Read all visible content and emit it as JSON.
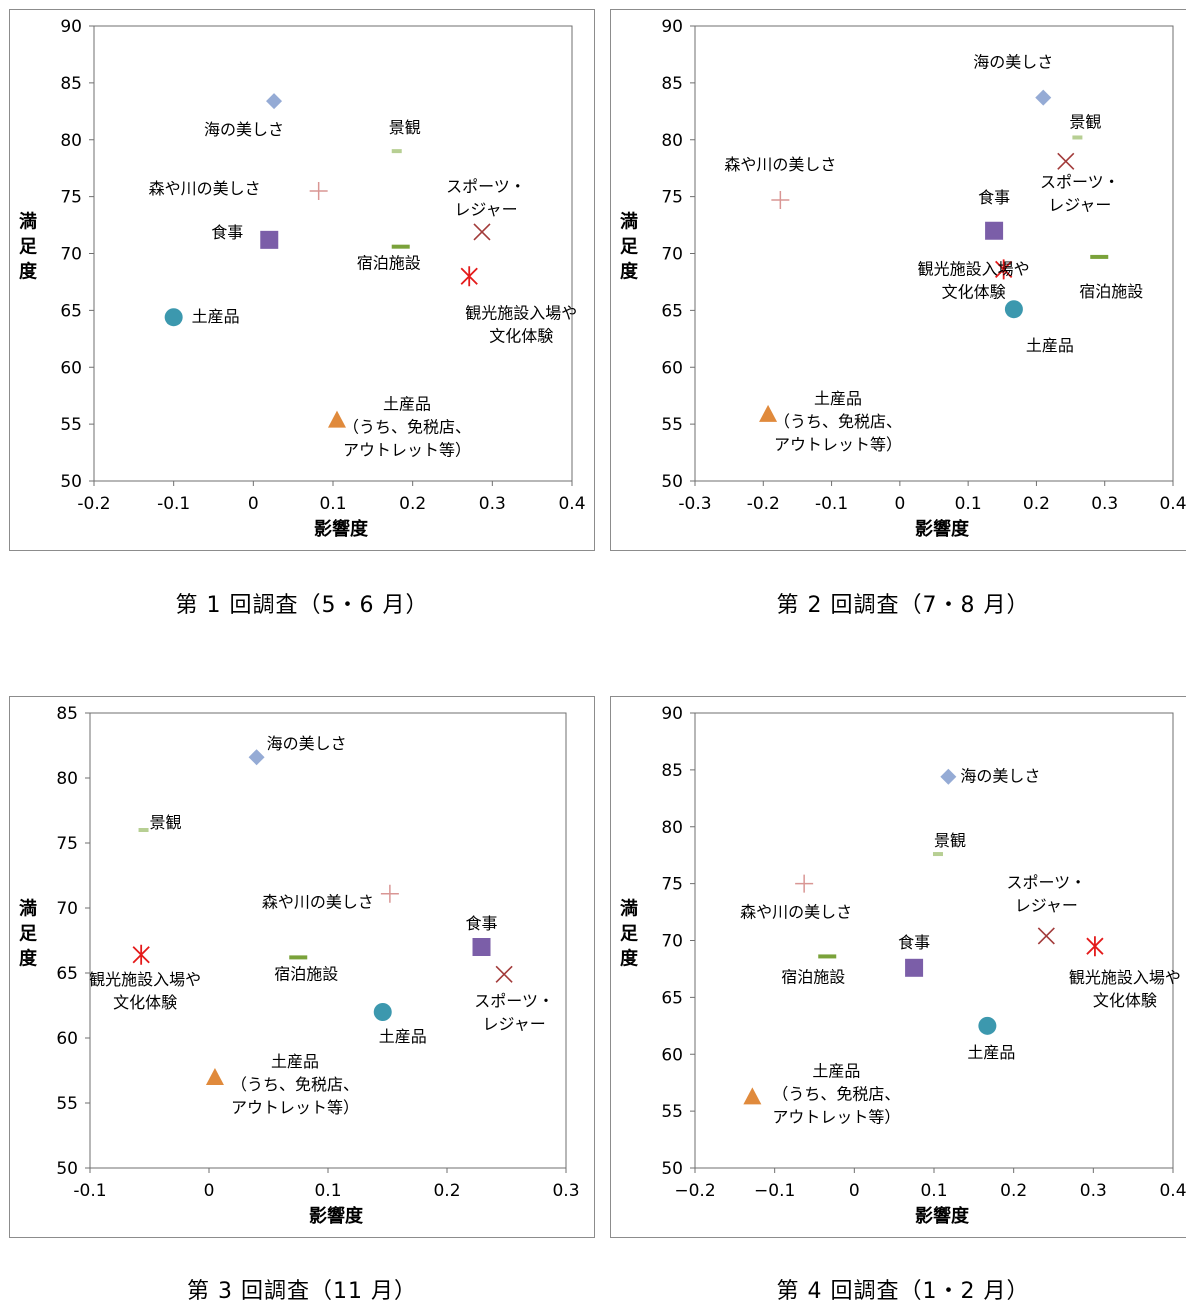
{
  "chart_data": [
    {
      "type": "scatter",
      "xlabel": "影響度",
      "ylabel": "満足度",
      "xlim": [
        -0.2,
        0.4
      ],
      "xticks": [
        -0.2,
        -0.1,
        0,
        0.1,
        0.2,
        0.3,
        0.4
      ],
      "xtick_labels": [
        "-0.2",
        "-0.1",
        "0",
        "0.1",
        "0.2",
        "0.3",
        "0.4"
      ],
      "ylim": [
        50,
        90
      ],
      "yticks": [
        50,
        55,
        60,
        65,
        70,
        75,
        80,
        85,
        90
      ],
      "ytick_labels": [
        "50",
        "55",
        "60",
        "65",
        "70",
        "75",
        "80",
        "85",
        "90"
      ],
      "grid": false,
      "caption": "第 1 回調査（5・6 月）",
      "points": [
        {
          "label": "海の美しさ",
          "x": 0.026,
          "y": 83.4,
          "marker": "diamond"
        },
        {
          "label": "景観",
          "x": 0.18,
          "y": 79.0,
          "marker": "dash-light"
        },
        {
          "label": "森や川の美しさ",
          "x": 0.082,
          "y": 75.5,
          "marker": "plus"
        },
        {
          "label": "スポーツ・レジャー",
          "x": 0.287,
          "y": 71.9,
          "marker": "x"
        },
        {
          "label": "食事",
          "x": 0.02,
          "y": 71.2,
          "marker": "square"
        },
        {
          "label": "宿泊施設",
          "x": 0.185,
          "y": 70.6,
          "marker": "dash"
        },
        {
          "label": "観光施設入場や文化体験",
          "x": 0.271,
          "y": 68.0,
          "marker": "asterisk"
        },
        {
          "label": "土産品",
          "x": -0.1,
          "y": 64.4,
          "marker": "circle"
        },
        {
          "label": "土産品（うち、免税店、アウトレット等）",
          "x": 0.105,
          "y": 55.4,
          "marker": "triangle"
        }
      ]
    },
    {
      "type": "scatter",
      "xlabel": "影響度",
      "ylabel": "満足度",
      "xlim": [
        -0.3,
        0.4
      ],
      "xticks": [
        -0.3,
        -0.2,
        -0.1,
        0,
        0.1,
        0.2,
        0.3,
        0.4
      ],
      "xtick_labels": [
        "-0.3",
        "-0.2",
        "-0.1",
        "0",
        "0.1",
        "0.2",
        "0.3",
        "0.4"
      ],
      "ylim": [
        50,
        90
      ],
      "yticks": [
        50,
        55,
        60,
        65,
        70,
        75,
        80,
        85,
        90
      ],
      "ytick_labels": [
        "50",
        "55",
        "60",
        "65",
        "70",
        "75",
        "80",
        "85",
        "90"
      ],
      "grid": false,
      "caption": "第 2 回調査（7・8 月）",
      "points": [
        {
          "label": "海の美しさ",
          "x": 0.21,
          "y": 83.7,
          "marker": "diamond"
        },
        {
          "label": "景観",
          "x": 0.26,
          "y": 80.2,
          "marker": "dash-light"
        },
        {
          "label": "スポーツ・レジャー",
          "x": 0.243,
          "y": 78.1,
          "marker": "x"
        },
        {
          "label": "森や川の美しさ",
          "x": -0.175,
          "y": 74.7,
          "marker": "plus"
        },
        {
          "label": "食事",
          "x": 0.138,
          "y": 72.0,
          "marker": "square"
        },
        {
          "label": "宿泊施設",
          "x": 0.292,
          "y": 69.7,
          "marker": "dash"
        },
        {
          "label": "観光施設入場や文化体験",
          "x": 0.152,
          "y": 68.6,
          "marker": "asterisk"
        },
        {
          "label": "土産品",
          "x": 0.167,
          "y": 65.1,
          "marker": "circle"
        },
        {
          "label": "土産品（うち、免税店、アウトレット等）",
          "x": -0.193,
          "y": 55.9,
          "marker": "triangle"
        }
      ]
    },
    {
      "type": "scatter",
      "xlabel": "影響度",
      "ylabel": "満足度",
      "xlim": [
        -0.1,
        0.3
      ],
      "xticks": [
        -0.1,
        0,
        0.1,
        0.2,
        0.3
      ],
      "xtick_labels": [
        "-0.1",
        "0",
        "0.1",
        "0.2",
        "0.3"
      ],
      "ylim": [
        50,
        85
      ],
      "yticks": [
        50,
        55,
        60,
        65,
        70,
        75,
        80,
        85
      ],
      "ytick_labels": [
        "50",
        "55",
        "60",
        "65",
        "70",
        "75",
        "80",
        "85"
      ],
      "grid": false,
      "caption": "第 3 回調査（11 月）",
      "points": [
        {
          "label": "海の美しさ",
          "x": 0.04,
          "y": 81.6,
          "marker": "diamond"
        },
        {
          "label": "景観",
          "x": -0.055,
          "y": 76.0,
          "marker": "dash-light"
        },
        {
          "label": "森や川の美しさ",
          "x": 0.152,
          "y": 71.1,
          "marker": "plus"
        },
        {
          "label": "食事",
          "x": 0.229,
          "y": 67.0,
          "marker": "square"
        },
        {
          "label": "観光施設入場や文化体験",
          "x": -0.057,
          "y": 66.4,
          "marker": "asterisk"
        },
        {
          "label": "宿泊施設",
          "x": 0.075,
          "y": 66.2,
          "marker": "dash"
        },
        {
          "label": "スポーツ・レジャー",
          "x": 0.248,
          "y": 64.9,
          "marker": "x"
        },
        {
          "label": "土産品",
          "x": 0.146,
          "y": 62.0,
          "marker": "circle"
        },
        {
          "label": "土産品（うち、免税店、アウトレット等）",
          "x": 0.005,
          "y": 57.0,
          "marker": "triangle"
        }
      ]
    },
    {
      "type": "scatter",
      "xlabel": "影響度",
      "ylabel": "満足度",
      "xlim": [
        -0.2,
        0.4
      ],
      "xticks": [
        -0.2,
        -0.1,
        0,
        0.1,
        0.2,
        0.3,
        0.4
      ],
      "xtick_labels": [
        "−0.2",
        "−0.1",
        "0",
        "0.1",
        "0.2",
        "0.3",
        "0.4"
      ],
      "ylim": [
        50,
        90
      ],
      "yticks": [
        50,
        55,
        60,
        65,
        70,
        75,
        80,
        85,
        90
      ],
      "ytick_labels": [
        "50",
        "55",
        "60",
        "65",
        "70",
        "75",
        "80",
        "85",
        "90"
      ],
      "grid": false,
      "caption": "第 4 回調査（1・2 月）",
      "points": [
        {
          "label": "海の美しさ",
          "x": 0.118,
          "y": 84.4,
          "marker": "diamond"
        },
        {
          "label": "景観",
          "x": 0.105,
          "y": 77.6,
          "marker": "dash-light"
        },
        {
          "label": "森や川の美しさ",
          "x": -0.063,
          "y": 75.0,
          "marker": "plus"
        },
        {
          "label": "スポーツ・レジャー",
          "x": 0.241,
          "y": 70.4,
          "marker": "x"
        },
        {
          "label": "観光施設入場や文化体験",
          "x": 0.302,
          "y": 69.5,
          "marker": "asterisk"
        },
        {
          "label": "宿泊施設",
          "x": -0.034,
          "y": 68.6,
          "marker": "dash"
        },
        {
          "label": "食事",
          "x": 0.075,
          "y": 67.6,
          "marker": "square"
        },
        {
          "label": "土産品",
          "x": 0.167,
          "y": 62.5,
          "marker": "circle"
        },
        {
          "label": "土産品（うち、免税店、アウトレット等）",
          "x": -0.128,
          "y": 56.3,
          "marker": "triangle"
        }
      ]
    }
  ],
  "colors": {
    "diamond": "#95abd5",
    "dash-light": "#b7cf93",
    "plus": "#d99694",
    "x": "#a23b3a",
    "square": "#7b5ea8",
    "dash": "#7aa23a",
    "asterisk": "#e41a1a",
    "circle": "#3c98ae",
    "triangle": "#e08a3c"
  }
}
